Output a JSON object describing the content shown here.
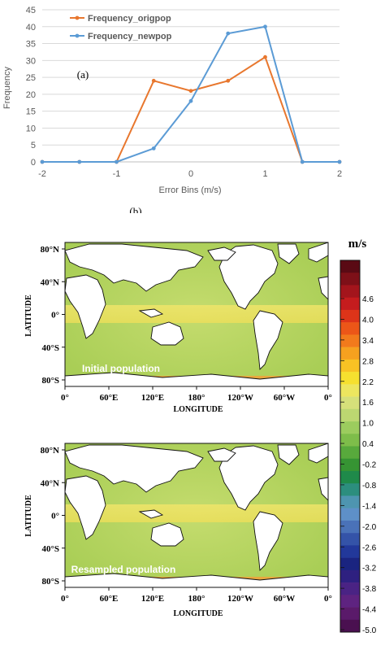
{
  "chart_data": [
    {
      "type": "line",
      "panel_label": "(a)",
      "xlabel": "Error Bins (m/s)",
      "ylabel": "Frequency",
      "xlim": [
        -2,
        2
      ],
      "ylim": [
        0,
        45
      ],
      "x_ticks": [
        "-2",
        "-1",
        "0",
        "1",
        "2"
      ],
      "y_ticks": [
        "0",
        "5",
        "10",
        "15",
        "20",
        "25",
        "30",
        "35",
        "40",
        "45"
      ],
      "x": [
        -2,
        -1.5,
        -1,
        -0.5,
        0,
        0.5,
        1,
        1.5,
        2
      ],
      "series": [
        {
          "name": "Frequency_origpop",
          "color": "#e8772e",
          "values": [
            0,
            0,
            0,
            24,
            21,
            24,
            31,
            0,
            0
          ]
        },
        {
          "name": "Frequency_newpop",
          "color": "#5b9bd5",
          "values": [
            0,
            0,
            0,
            4,
            18,
            38,
            40,
            0,
            0
          ]
        }
      ]
    },
    {
      "type": "heatmap",
      "panel_label": "(b)",
      "unit": "m/s",
      "xlabel": "LONGITUDE",
      "ylabel": "LATITUDE",
      "x_ticks": [
        "0°",
        "60°E",
        "120°E",
        "180°",
        "120°W",
        "60°W",
        "0°"
      ],
      "y_ticks": [
        "80°N",
        "40°N",
        "0°",
        "40°S",
        "80°S"
      ],
      "maps": [
        {
          "annotation": "Initial population"
        },
        {
          "annotation": "Resampled population"
        }
      ],
      "colorbar_ticks": [
        "4.6",
        "4.0",
        "3.4",
        "2.8",
        "2.2",
        "1.6",
        "1.0",
        "0.4",
        "-0.2",
        "-0.8",
        "-1.4",
        "-2.0",
        "-2.6",
        "-3.2",
        "-3.8",
        "-4.4",
        "-5.0"
      ],
      "colorbar_colors": [
        "#5a0a14",
        "#7e1018",
        "#a3151c",
        "#c51c1e",
        "#dd3419",
        "#ec5618",
        "#f27a1c",
        "#f6a11f",
        "#f8c224",
        "#f6e02f",
        "#ede65f",
        "#d6e07a",
        "#bcd771",
        "#9ccc5e",
        "#7ebd4a",
        "#58a93c",
        "#369433",
        "#1f8a4a",
        "#2c8e7e",
        "#4e95b0",
        "#5e90c8",
        "#4a72b8",
        "#3453a8",
        "#22389a",
        "#1a2480",
        "#2e2080",
        "#4a2384",
        "#5e2380",
        "#5a1a6a",
        "#4a1050"
      ]
    }
  ]
}
